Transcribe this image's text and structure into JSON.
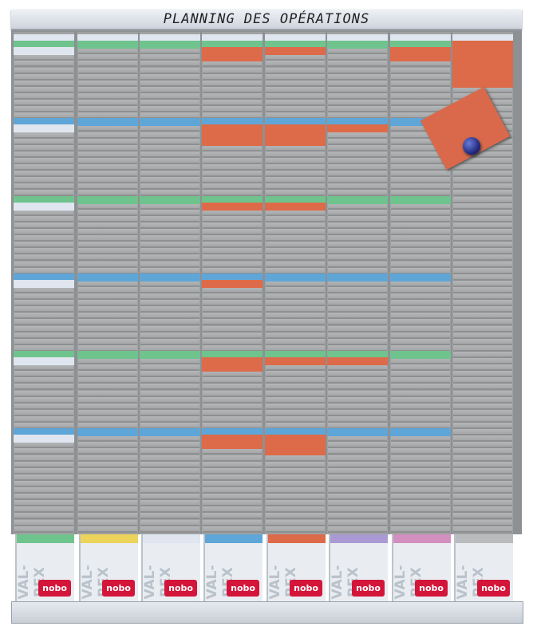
{
  "board": {
    "title": "PLANNING DES OPÉRATIONS",
    "colors": {
      "white": "#dfe6f0",
      "green": "#6fc38d",
      "blue": "#5fa6d8",
      "orange": "#dd6a48",
      "yellow": "#ecd35a",
      "purple": "#a99ad4",
      "pink": "#d28fbf",
      "gray": "#b9bbbd"
    },
    "slots_per_column": 77,
    "columns": [
      {
        "tab": "green",
        "cards": [
          [
            0,
            "white"
          ],
          [
            1,
            "green"
          ],
          [
            2,
            "white"
          ],
          [
            13,
            "blue"
          ],
          [
            14,
            "white"
          ],
          [
            25,
            "green"
          ],
          [
            26,
            "white"
          ],
          [
            37,
            "blue"
          ],
          [
            38,
            "white"
          ],
          [
            49,
            "green"
          ],
          [
            50,
            "white"
          ],
          [
            61,
            "blue"
          ],
          [
            62,
            "white"
          ]
        ]
      },
      {
        "tab": "yellow",
        "cards": [
          [
            0,
            "white"
          ],
          [
            1,
            "green"
          ],
          [
            13,
            "blue"
          ],
          [
            25,
            "green"
          ],
          [
            37,
            "blue"
          ],
          [
            49,
            "green"
          ],
          [
            61,
            "blue"
          ]
        ]
      },
      {
        "tab": "white",
        "cards": [
          [
            0,
            "white"
          ],
          [
            1,
            "green"
          ],
          [
            13,
            "blue"
          ],
          [
            25,
            "green"
          ],
          [
            37,
            "blue"
          ],
          [
            49,
            "green"
          ],
          [
            61,
            "blue"
          ]
        ]
      },
      {
        "tab": "blue",
        "cards": [
          [
            0,
            "white"
          ],
          [
            1,
            "green"
          ],
          [
            2,
            "orange"
          ],
          [
            3,
            "orange"
          ],
          [
            13,
            "blue"
          ],
          [
            14,
            "orange"
          ],
          [
            15,
            "orange"
          ],
          [
            16,
            "orange"
          ],
          [
            25,
            "green"
          ],
          [
            26,
            "orange"
          ],
          [
            37,
            "blue"
          ],
          [
            38,
            "orange"
          ],
          [
            49,
            "green"
          ],
          [
            50,
            "orange"
          ],
          [
            51,
            "orange"
          ],
          [
            61,
            "blue"
          ],
          [
            62,
            "orange"
          ],
          [
            63,
            "orange"
          ]
        ]
      },
      {
        "tab": "orange",
        "cards": [
          [
            0,
            "white"
          ],
          [
            1,
            "green"
          ],
          [
            2,
            "orange"
          ],
          [
            13,
            "blue"
          ],
          [
            14,
            "orange"
          ],
          [
            15,
            "orange"
          ],
          [
            16,
            "orange"
          ],
          [
            25,
            "green"
          ],
          [
            26,
            "orange"
          ],
          [
            37,
            "blue"
          ],
          [
            49,
            "green"
          ],
          [
            50,
            "orange"
          ],
          [
            61,
            "blue"
          ],
          [
            62,
            "orange"
          ],
          [
            63,
            "orange"
          ],
          [
            64,
            "orange"
          ]
        ]
      },
      {
        "tab": "purple",
        "cards": [
          [
            0,
            "white"
          ],
          [
            1,
            "green"
          ],
          [
            13,
            "blue"
          ],
          [
            14,
            "orange"
          ],
          [
            25,
            "green"
          ],
          [
            37,
            "blue"
          ],
          [
            49,
            "green"
          ],
          [
            50,
            "orange"
          ],
          [
            61,
            "blue"
          ]
        ]
      },
      {
        "tab": "pink",
        "cards": [
          [
            0,
            "white"
          ],
          [
            1,
            "green"
          ],
          [
            2,
            "orange"
          ],
          [
            3,
            "orange"
          ],
          [
            13,
            "blue"
          ],
          [
            25,
            "green"
          ],
          [
            37,
            "blue"
          ],
          [
            49,
            "green"
          ],
          [
            61,
            "blue"
          ]
        ]
      },
      {
        "tab": "gray",
        "cards": [
          [
            0,
            "white"
          ],
          [
            1,
            "orange"
          ],
          [
            2,
            "orange"
          ],
          [
            3,
            "orange"
          ],
          [
            4,
            "orange"
          ],
          [
            5,
            "orange"
          ],
          [
            6,
            "orange"
          ],
          [
            7,
            "orange"
          ]
        ]
      }
    ],
    "holder_brand": "VAL-REX",
    "holder_logo": "nobo"
  }
}
